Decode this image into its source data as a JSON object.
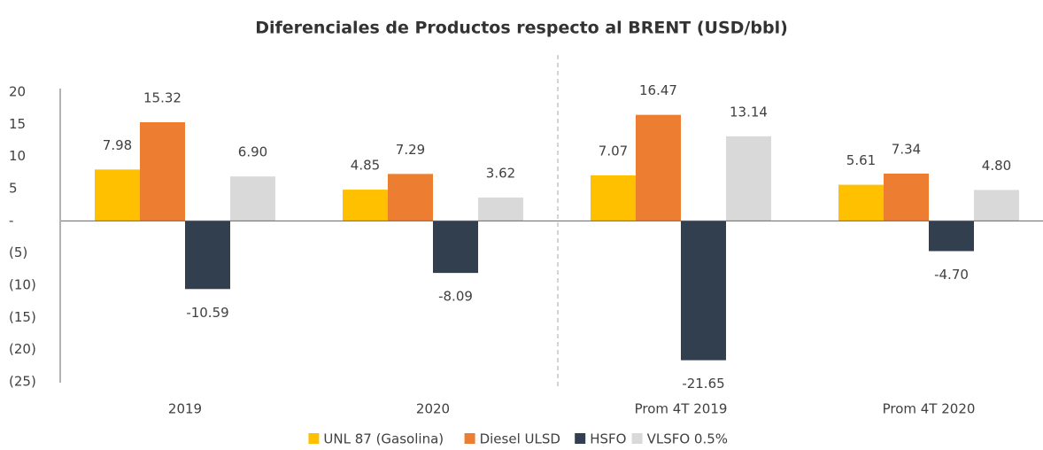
{
  "chart_data": {
    "type": "bar",
    "title": "Diferenciales de Productos respecto al BRENT (USD/bbl)",
    "categories": [
      "2019",
      "2020",
      "Prom 4T 2019",
      "Prom 4T 2020"
    ],
    "series": [
      {
        "name": "UNL 87 (Gasolina)",
        "color": "#FFC000",
        "values": [
          7.98,
          4.85,
          7.07,
          5.61
        ],
        "value_labels": [
          "7.98",
          "4.85",
          "7.07",
          "5.61"
        ]
      },
      {
        "name": "Diesel ULSD",
        "color": "#ED7D31",
        "values": [
          15.32,
          7.29,
          16.47,
          7.34
        ],
        "value_labels": [
          "15.32",
          "7.29",
          "16.47",
          "7.34"
        ]
      },
      {
        "name": "HSFO",
        "color": "#323F4F",
        "values": [
          -10.59,
          -8.09,
          -21.65,
          -4.7
        ],
        "value_labels": [
          "-10.59",
          "-8.09",
          "-21.65",
          "-4.70"
        ]
      },
      {
        "name": "VLSFO 0.5%",
        "color": "#D9D9D9",
        "values": [
          6.9,
          3.62,
          13.14,
          4.8
        ],
        "value_labels": [
          "6.90",
          "3.62",
          "13.14",
          "4.80"
        ]
      }
    ],
    "ylim": [
      -25,
      20
    ],
    "yticks": [
      20,
      15,
      10,
      5,
      {
        "value": 0,
        "label": "-"
      },
      {
        "value": -5,
        "label": "(5)"
      },
      {
        "value": -10,
        "label": "(10)"
      },
      {
        "value": -15,
        "label": "(15)"
      },
      {
        "value": -20,
        "label": "(20)"
      },
      {
        "value": -25,
        "label": "(25)"
      }
    ],
    "grid": false,
    "legend": "bottom"
  }
}
